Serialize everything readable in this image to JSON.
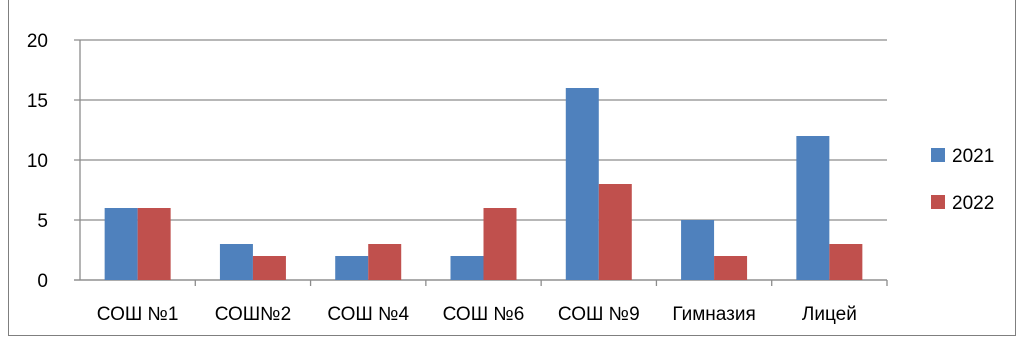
{
  "chart_data": {
    "type": "bar",
    "categories": [
      "СОШ №1",
      "СОШ№2",
      "СОШ №4",
      "СОШ №6",
      "СОШ №9",
      "Гимназия",
      "Лицей"
    ],
    "series": [
      {
        "name": "2021",
        "values": [
          6,
          3,
          2,
          2,
          16,
          5,
          12
        ],
        "color": "#4f81bd"
      },
      {
        "name": "2022",
        "values": [
          6,
          2,
          3,
          6,
          8,
          2,
          3
        ],
        "color": "#c0504d"
      }
    ],
    "y_ticks": [
      "0",
      "5",
      "10",
      "15",
      "20"
    ],
    "ylim": [
      0,
      20
    ],
    "grid": true,
    "legend": "right"
  }
}
